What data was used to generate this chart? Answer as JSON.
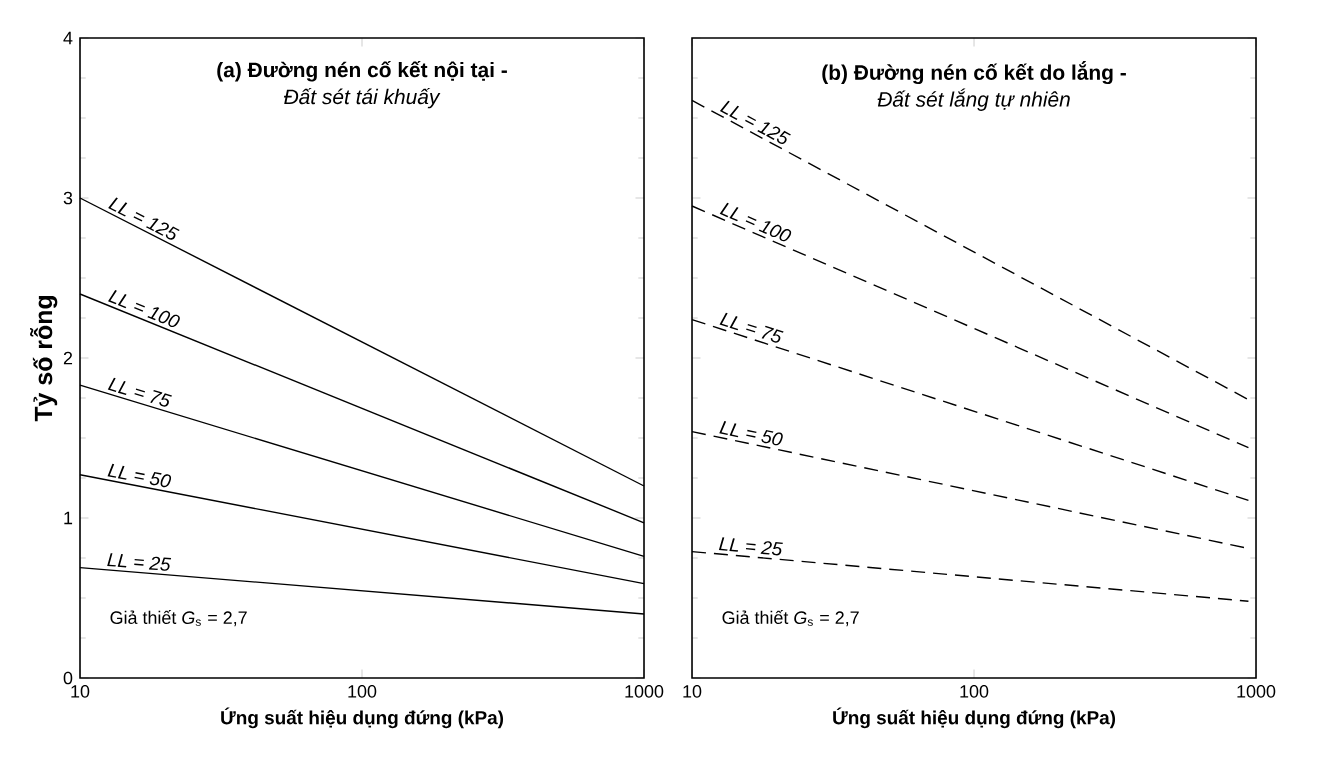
{
  "chart_data": [
    {
      "type": "line",
      "title": "(a) Đường nén cố kết nội tại -",
      "subtitle": "*Đất sét tái khuấy*",
      "xlabel": "Ứng suất hiệu dụng đứng (kPa)",
      "ylabel": "Tỷ số rỗng",
      "log": "x",
      "x": [
        10,
        1000
      ],
      "xlim": [
        10,
        1000
      ],
      "xticks": [
        10,
        100,
        1000
      ],
      "ylim": [
        0,
        4
      ],
      "yticks": [
        0,
        1,
        2,
        3,
        4
      ],
      "line_style": "solid",
      "annotations": [
        "Giả thiết *G*$_{s}$ = 2,7"
      ],
      "series": [
        {
          "name": "*LL = 125*",
          "color": "#000000",
          "values": [
            3.0,
            1.2
          ]
        },
        {
          "name": "*LL = 100*",
          "color": "#000000",
          "values": [
            2.4,
            0.97
          ]
        },
        {
          "name": "*LL = 75*",
          "color": "#000000",
          "values": [
            1.83,
            0.76
          ]
        },
        {
          "name": "*LL = 50*",
          "color": "#000000",
          "values": [
            1.27,
            0.59
          ]
        },
        {
          "name": "*LL = 25*",
          "color": "#000000",
          "values": [
            0.69,
            0.4
          ]
        }
      ]
    },
    {
      "type": "line",
      "title": "(b) Đường nén cố kết do lắng -",
      "subtitle": "*Đất sét lắng tự nhiên*",
      "xlabel": "Ứng suất hiệu dụng đứng (kPa)",
      "log": "x",
      "xlim": [
        10,
        1000
      ],
      "xticks": [
        10,
        100,
        1000
      ],
      "ylim": [
        0,
        4
      ],
      "yticks": [
        0,
        1,
        2,
        3,
        4
      ],
      "tick_labels": "x",
      "line_style": "dashed",
      "x": [
        10,
        940
      ],
      "annotations": [
        "Giả thiết *G*$_{s}$ = 2,7"
      ],
      "series": [
        {
          "name": "*LL = 125*",
          "color": "#000000",
          "values": [
            3.61,
            1.74
          ]
        },
        {
          "name": "*LL = 100*",
          "color": "#000000",
          "values": [
            2.95,
            1.44
          ]
        },
        {
          "name": "*LL = 75*",
          "color": "#000000",
          "values": [
            2.24,
            1.11
          ]
        },
        {
          "name": "*LL = 50*",
          "color": "#000000",
          "values": [
            1.54,
            0.81
          ]
        },
        {
          "name": "*LL = 25*",
          "color": "#000000",
          "values": [
            0.79,
            0.48
          ]
        }
      ]
    }
  ]
}
